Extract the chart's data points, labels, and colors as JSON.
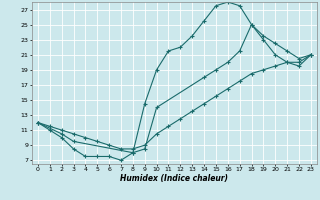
{
  "xlabel": "Humidex (Indice chaleur)",
  "xlim": [
    -0.5,
    23.5
  ],
  "ylim": [
    6.5,
    28
  ],
  "xticks": [
    0,
    1,
    2,
    3,
    4,
    5,
    6,
    7,
    8,
    9,
    10,
    11,
    12,
    13,
    14,
    15,
    16,
    17,
    18,
    19,
    20,
    21,
    22,
    23
  ],
  "yticks": [
    7,
    9,
    11,
    13,
    15,
    17,
    19,
    21,
    23,
    25,
    27
  ],
  "bg_color": "#cce8ec",
  "line_color": "#1a6b6b",
  "grid_color": "#ffffff",
  "curve1_x": [
    0,
    1,
    2,
    3,
    4,
    5,
    6,
    7,
    8,
    9,
    10,
    11,
    12,
    13,
    14,
    15,
    16,
    17,
    18,
    19,
    20,
    21,
    22,
    23
  ],
  "curve1_y": [
    12,
    11,
    10,
    8.5,
    7.5,
    7.5,
    7.5,
    7,
    8,
    14.5,
    19,
    21.5,
    22,
    23.5,
    25.5,
    27.5,
    28,
    27.5,
    25,
    23,
    21,
    20,
    19.5,
    21
  ],
  "curve2_x": [
    0,
    1,
    2,
    3,
    4,
    5,
    6,
    7,
    8,
    9,
    10,
    11,
    12,
    13,
    14,
    15,
    16,
    17,
    18,
    19,
    20,
    21,
    22,
    23
  ],
  "curve2_y": [
    12,
    11.5,
    11,
    10.5,
    10,
    9.5,
    9,
    8.5,
    8.5,
    9,
    10.5,
    11.5,
    12.5,
    13.5,
    14.5,
    15.5,
    16.5,
    17.5,
    18.5,
    19,
    19.5,
    20,
    20,
    21
  ],
  "curve3_x": [
    0,
    2,
    3,
    8,
    9,
    10,
    14,
    15,
    16,
    17,
    18,
    19,
    20,
    21,
    22,
    23
  ],
  "curve3_y": [
    12,
    10.5,
    9.5,
    8.0,
    8.5,
    14,
    18,
    19,
    20,
    21.5,
    25,
    23.5,
    22.5,
    21.5,
    20.5,
    21
  ]
}
